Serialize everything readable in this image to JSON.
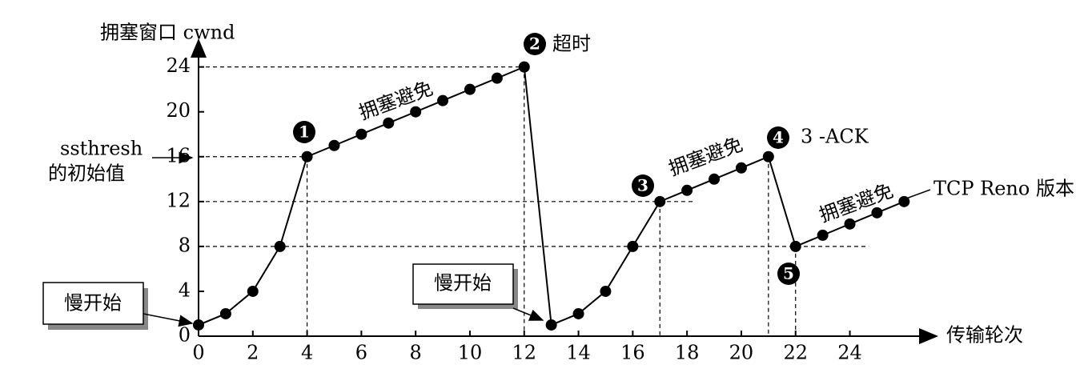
{
  "chart_data": {
    "type": "line",
    "y_label": "拥塞窗口 cwnd",
    "x_label": "传输轮次",
    "x": [
      0,
      1,
      2,
      3,
      4,
      5,
      6,
      7,
      8,
      9,
      10,
      11,
      12,
      13,
      14,
      15,
      16,
      17,
      18,
      19,
      20,
      21,
      22,
      23,
      24,
      25,
      26
    ],
    "series": [
      {
        "color": "#000000",
        "values": [
          1,
          2,
          4,
          8,
          16,
          17,
          18,
          19,
          20,
          21,
          22,
          23,
          24,
          1,
          2,
          4,
          8,
          12,
          13,
          14,
          15,
          16,
          8,
          9,
          10,
          11,
          12
        ]
      }
    ],
    "xlim": [
      0,
      27.2
    ],
    "ylim": [
      0,
      26.4
    ],
    "xticks": [
      0,
      2,
      4,
      6,
      8,
      10,
      12,
      14,
      16,
      18,
      20,
      22,
      24
    ],
    "yticks": [
      0,
      4,
      8,
      12,
      16,
      20,
      24
    ],
    "annotations": {
      "slow_start": [
        "慢开始",
        "慢开始"
      ],
      "congestion_avoidance": [
        "拥塞避免",
        "拥塞避免",
        "拥塞避免"
      ],
      "markers": [
        "1",
        "2",
        "3",
        "4",
        "5"
      ],
      "timeout": "超时",
      "three_ack": "3 -ACK",
      "version": "TCP Reno 版本",
      "ssthresh": [
        "ssthresh",
        "的初始值"
      ]
    }
  }
}
